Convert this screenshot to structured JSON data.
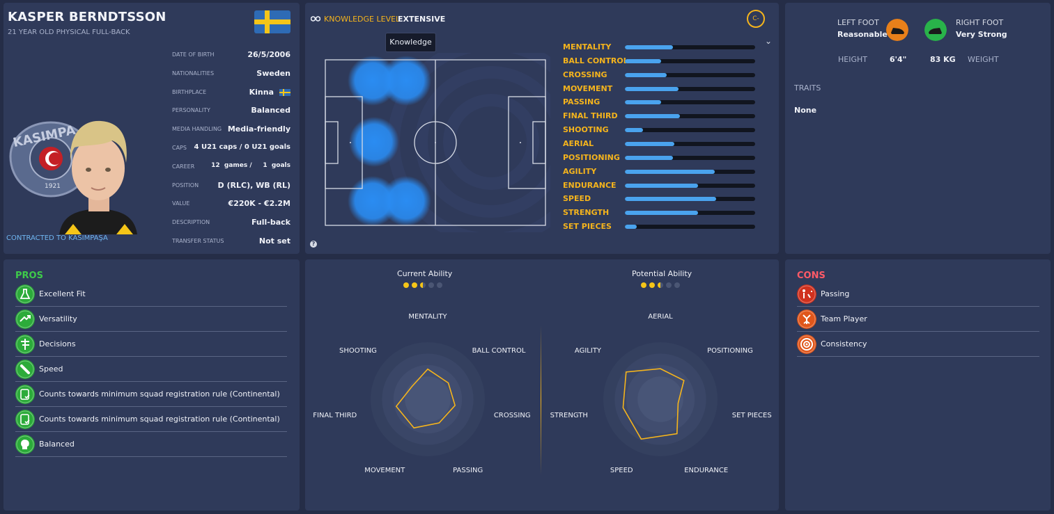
{
  "profile": {
    "name": "KASPER BERNDTSSON",
    "subtitle": "21 YEAR OLD PHYSICAL FULL-BACK",
    "contracted": "CONTRACTED TO KASIMPAŞA",
    "crest_text": "KASIMPA",
    "crest_year": "1921",
    "info": [
      {
        "label": "DATE OF BIRTH",
        "value": "26/5/2006"
      },
      {
        "label": "NATIONALITIES",
        "value": "Sweden"
      },
      {
        "label": "BIRTHPLACE",
        "value": "Kinna"
      },
      {
        "label": "PERSONALITY",
        "value": "Balanced"
      },
      {
        "label": "MEDIA HANDLING",
        "value": "Media-friendly"
      },
      {
        "label": "CAPS",
        "value": "4 U21 caps / 0 U21 goals"
      },
      {
        "label": "CAREER",
        "value": "12  games /     1  goals"
      },
      {
        "label": "POSITION",
        "value": "D (RLC), WB (RL)"
      },
      {
        "label": "VALUE",
        "value": "€220K - €2.2M"
      },
      {
        "label": "DESCRIPTION",
        "value": "Full-back"
      },
      {
        "label": "TRANSFER STATUS",
        "value": "Not set"
      }
    ],
    "colors": {
      "flag_blue": "#2e6bb5",
      "flag_yellow": "#f5c518"
    }
  },
  "knowledge": {
    "label": "KNOWLEDGE LEVEL",
    "value": "EXTENSIVE",
    "badge": "C-",
    "tooltip": "Knowledge",
    "attributes": [
      {
        "name": "MENTALITY",
        "value": 0.37
      },
      {
        "name": "BALL CONTROL",
        "value": 0.28
      },
      {
        "name": "CROSSING",
        "value": 0.32
      },
      {
        "name": "MOVEMENT",
        "value": 0.41
      },
      {
        "name": "PASSING",
        "value": 0.28
      },
      {
        "name": "FINAL THIRD",
        "value": 0.42
      },
      {
        "name": "SHOOTING",
        "value": 0.14
      },
      {
        "name": "AERIAL",
        "value": 0.38
      },
      {
        "name": "POSITIONING",
        "value": 0.37
      },
      {
        "name": "AGILITY",
        "value": 0.69
      },
      {
        "name": "ENDURANCE",
        "value": 0.56
      },
      {
        "name": "SPEED",
        "value": 0.7
      },
      {
        "name": "STRENGTH",
        "value": 0.56
      },
      {
        "name": "SET PIECES",
        "value": 0.09
      }
    ]
  },
  "feet": {
    "left_label": "LEFT FOOT",
    "left_value": "Reasonable",
    "right_label": "RIGHT FOOT",
    "right_value": "Very Strong",
    "height_label": "HEIGHT",
    "height_value": "6'4\"",
    "weight_value": "83 KG",
    "weight_label": "WEIGHT",
    "traits_label": "TRAITS",
    "traits_value": "None",
    "colors": {
      "left": "#e8801a",
      "right": "#29b34a"
    }
  },
  "pros": {
    "title": "PROS",
    "items": [
      {
        "text": "Excellent Fit",
        "icon": "flask-icon"
      },
      {
        "text": "Versatility",
        "icon": "arrows-icon"
      },
      {
        "text": "Decisions",
        "icon": "signpost-icon"
      },
      {
        "text": "Speed",
        "icon": "speed-icon"
      },
      {
        "text": "Counts towards minimum squad registration rule (Continental)",
        "icon": "registration-icon"
      },
      {
        "text": "Counts towards minimum squad registration rule (Continental)",
        "icon": "registration-icon"
      },
      {
        "text": "Balanced",
        "icon": "head-icon"
      }
    ],
    "colors": {
      "title": "#3ecb4a",
      "icon": "#2cab3a"
    }
  },
  "cons": {
    "title": "CONS",
    "items": [
      {
        "text": "Passing",
        "icon": "passing-icon",
        "color": "#d0311e"
      },
      {
        "text": "Team Player",
        "icon": "team-player-icon",
        "color": "#e0561b"
      },
      {
        "text": "Consistency",
        "icon": "target-icon",
        "color": "#e0561b"
      }
    ],
    "colors": {
      "title": "#ff5a67"
    }
  },
  "abilities": {
    "current_title": "Current Ability",
    "potential_title": "Potential Ability",
    "current_stars": 2.5,
    "potential_stars": 2.5,
    "max_stars": 5
  },
  "chart_data": [
    {
      "type": "radar",
      "axes": [
        "MENTALITY",
        "BALL CONTROL",
        "CROSSING",
        "PASSING",
        "MOVEMENT",
        "FINAL THIRD",
        "SHOOTING"
      ],
      "values": [
        0.37,
        0.28,
        0.32,
        0.28,
        0.41,
        0.42,
        0.14
      ],
      "range": [
        0,
        1
      ]
    },
    {
      "type": "radar",
      "axes": [
        "AERIAL",
        "POSITIONING",
        "SET PIECES",
        "ENDURANCE",
        "SPEED",
        "STRENGTH",
        "AGILITY"
      ],
      "values": [
        0.38,
        0.37,
        0.09,
        0.56,
        0.7,
        0.56,
        0.69
      ],
      "range": [
        0,
        1
      ]
    }
  ]
}
